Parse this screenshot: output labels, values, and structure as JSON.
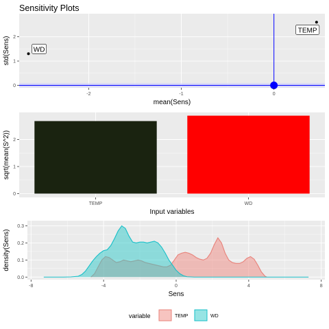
{
  "title": "Sensitivity Plots",
  "colors": {
    "panel_bg": "#EBEBEB",
    "grid": "#FFFFFF",
    "zero_line": "#0000FF",
    "zero_band": "#CCCCFF",
    "origin_point": "#0000FF",
    "bar_temp": "#1A2310",
    "bar_wd": "#FF0000",
    "density_temp_stroke": "#E8827A",
    "density_temp_fill": "#F08A82",
    "density_wd_stroke": "#17BFC8",
    "density_wd_fill": "#2DCACA"
  },
  "legend": {
    "title": "variable",
    "items": [
      {
        "label": "TEMP",
        "key": "temp"
      },
      {
        "label": "WD",
        "key": "wd"
      }
    ]
  },
  "chart_data": [
    {
      "type": "scatter",
      "xlabel": "mean(Sens)",
      "ylabel": "std(Sens)",
      "xlim": [
        -2.75,
        0.55
      ],
      "ylim": [
        -0.1,
        2.95
      ],
      "xticks": [
        -2,
        -1,
        0
      ],
      "xtick_labels": [
        "-2",
        "-1",
        "0"
      ],
      "yticks": [
        0,
        1,
        2
      ],
      "ytick_labels": [
        "0",
        "1",
        "2"
      ],
      "points": [
        {
          "label": "WD",
          "x": -2.65,
          "y": 1.3
        },
        {
          "label": "TEMP",
          "x": 0.46,
          "y": 2.6
        }
      ],
      "reference_lines": {
        "vertical_x": 0,
        "horizontal_y": 0
      }
    },
    {
      "type": "bar",
      "xlabel": "Input variables",
      "ylabel": "sqrt(mean(S^2))",
      "categories": [
        "TEMP",
        "WD"
      ],
      "values": [
        2.68,
        2.88
      ],
      "ylim": [
        -0.14,
        3.0
      ],
      "yticks": [
        0,
        1,
        2
      ],
      "ytick_labels": [
        "0",
        "1",
        "2"
      ]
    },
    {
      "type": "area",
      "xlabel": "Sens",
      "ylabel": "density(Sens)",
      "xlim": [
        -8.2,
        8.2
      ],
      "ylim": [
        -0.015,
        0.33
      ],
      "xticks": [
        -8,
        -4,
        0,
        4,
        8
      ],
      "xtick_labels": [
        "-8",
        "-4",
        "0",
        "4",
        "8"
      ],
      "yticks": [
        0,
        0.1,
        0.2,
        0.3
      ],
      "ytick_labels": [
        "0.0",
        "0.1",
        "0.2",
        "0.3"
      ],
      "series": [
        {
          "name": "TEMP",
          "x": [
            -4.7,
            -4.5,
            -4.3,
            -4.1,
            -3.9,
            -3.7,
            -3.5,
            -3.3,
            -3.1,
            -2.9,
            -2.7,
            -2.5,
            -2.3,
            -2.1,
            -1.9,
            -1.7,
            -1.5,
            -1.3,
            -1.1,
            -0.9,
            -0.7,
            -0.5,
            -0.3,
            -0.1,
            0.1,
            0.3,
            0.5,
            0.7,
            0.9,
            1.1,
            1.3,
            1.5,
            1.7,
            1.9,
            2.1,
            2.3,
            2.5,
            2.7,
            2.9,
            3.1,
            3.3,
            3.5,
            3.7,
            3.9,
            4.1,
            4.3,
            4.5,
            4.7,
            4.9,
            5.0
          ],
          "values": [
            0.0,
            0.02,
            0.06,
            0.1,
            0.12,
            0.115,
            0.1,
            0.085,
            0.09,
            0.1,
            0.095,
            0.09,
            0.095,
            0.1,
            0.095,
            0.085,
            0.08,
            0.075,
            0.07,
            0.065,
            0.06,
            0.06,
            0.07,
            0.1,
            0.13,
            0.14,
            0.145,
            0.14,
            0.13,
            0.115,
            0.105,
            0.1,
            0.11,
            0.14,
            0.19,
            0.23,
            0.2,
            0.14,
            0.1,
            0.085,
            0.08,
            0.08,
            0.09,
            0.11,
            0.12,
            0.105,
            0.07,
            0.03,
            0.005,
            0.0
          ]
        },
        {
          "name": "WD",
          "x": [
            -7.3,
            -7.0,
            -6.6,
            -6.2,
            -5.8,
            -5.4,
            -5.2,
            -5.0,
            -4.8,
            -4.6,
            -4.4,
            -4.2,
            -4.0,
            -3.8,
            -3.6,
            -3.4,
            -3.2,
            -3.0,
            -2.8,
            -2.6,
            -2.4,
            -2.2,
            -2.0,
            -1.8,
            -1.6,
            -1.4,
            -1.2,
            -1.0,
            -0.8,
            -0.6,
            -0.4,
            -0.2,
            0.0,
            0.2,
            0.4,
            0.6,
            1.0,
            1.6,
            2.4,
            3.2,
            4.0,
            4.8,
            5.6,
            6.4,
            7.0,
            7.3
          ],
          "values": [
            0.0,
            0.0,
            0.0,
            0.0,
            0.001,
            0.005,
            0.015,
            0.035,
            0.065,
            0.095,
            0.12,
            0.14,
            0.155,
            0.16,
            0.185,
            0.225,
            0.27,
            0.3,
            0.285,
            0.24,
            0.205,
            0.2,
            0.205,
            0.205,
            0.2,
            0.205,
            0.21,
            0.2,
            0.175,
            0.14,
            0.1,
            0.07,
            0.04,
            0.02,
            0.008,
            0.002,
            0.0,
            0.0,
            0.0,
            0.0,
            0.0,
            0.0,
            0.0,
            0.0,
            0.0,
            0.0
          ]
        }
      ]
    }
  ]
}
